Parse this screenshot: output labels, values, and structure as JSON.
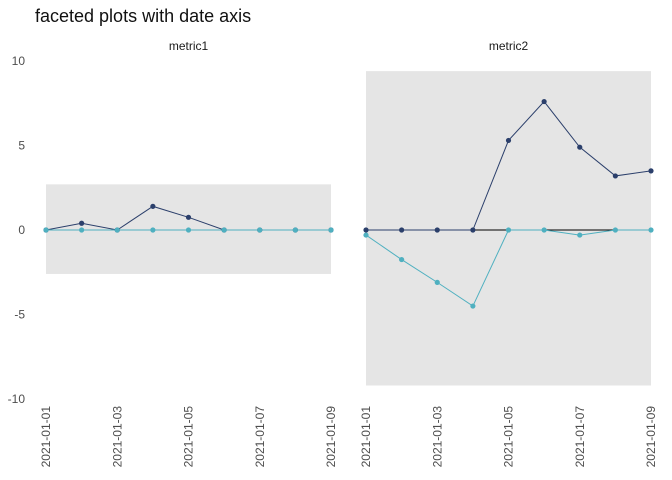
{
  "chart_data": {
    "type": "line",
    "title": "faceted plots with date axis",
    "xlabel": "",
    "ylabel": "",
    "ylim": [
      -10,
      10
    ],
    "y_ticks": [
      10,
      5,
      0,
      -5,
      -10
    ],
    "x": [
      "2021-01-01",
      "2021-01-02",
      "2021-01-03",
      "2021-01-04",
      "2021-01-05",
      "2021-01-06",
      "2021-01-07",
      "2021-01-08",
      "2021-01-09"
    ],
    "x_tick_labels": [
      "2021-01-01",
      "2021-01-03",
      "2021-01-05",
      "2021-01-07",
      "2021-01-09"
    ],
    "grid": false,
    "legend": "none",
    "zero_line_color": "#000000",
    "facets": [
      {
        "label": "metric1",
        "ribbon": [
          -2.6,
          2.7
        ],
        "series": [
          {
            "color": "#2b3f6b",
            "values": [
              0,
              0.4,
              0,
              1.4,
              0.75,
              0,
              0,
              0,
              0
            ]
          },
          {
            "color": "#4fb0c0",
            "values": [
              0,
              0,
              0,
              0,
              0,
              0,
              0,
              0,
              0
            ]
          }
        ]
      },
      {
        "label": "metric2",
        "ribbon": [
          -9.2,
          9.4
        ],
        "series": [
          {
            "color": "#2b3f6b",
            "values": [
              0,
              0,
              0,
              0,
              5.3,
              7.6,
              4.9,
              3.2,
              3.5
            ]
          },
          {
            "color": "#4fb0c0",
            "values": [
              -0.3,
              -1.75,
              -3.1,
              -4.5,
              0,
              0,
              -0.3,
              0,
              0
            ]
          }
        ]
      }
    ],
    "ribbon_color": "#e5e5e5"
  }
}
